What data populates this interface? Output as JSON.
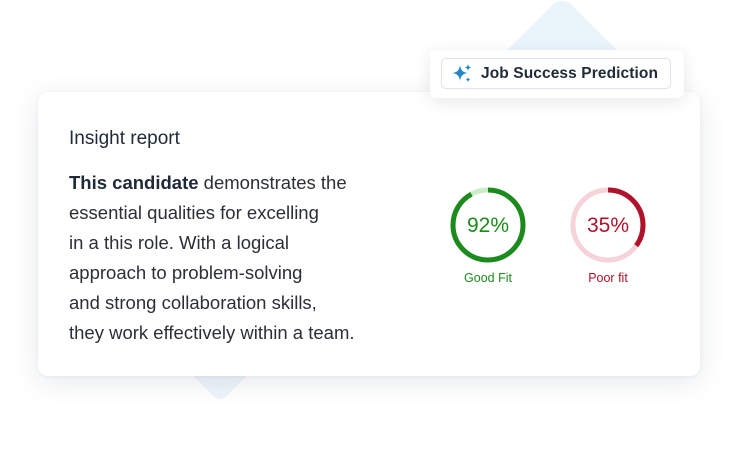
{
  "badge": {
    "label": "Job Success Prediction",
    "icon": "sparkle-icon",
    "icon_color": "#1f86c9"
  },
  "report": {
    "heading": "Insight report",
    "lead": "This candidate",
    "lines": [
      " demonstrates the",
      "essential qualities for excelling",
      "in a this role. With a logical",
      "approach to problem-solving",
      "and strong collaboration skills,",
      "they work effectively within a team."
    ]
  },
  "metrics": [
    {
      "value_text": "92%",
      "percent": 92,
      "label": "Good Fit",
      "color": "#1d8a1d",
      "track_color": "#c9ecc9"
    },
    {
      "value_text": "35%",
      "percent": 35,
      "label": "Poor fit",
      "color": "#b0122b",
      "track_color": "#f6d3d8"
    }
  ]
}
